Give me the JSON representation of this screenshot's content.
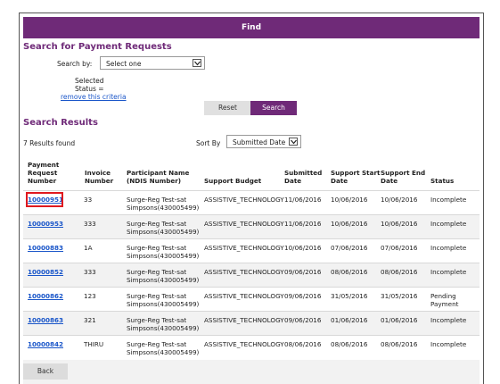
{
  "header": {
    "title": "Find"
  },
  "search_section": {
    "title": "Search for Payment Requests",
    "search_by_label": "Search by:",
    "search_by_value": "Select one",
    "selected_label": "Selected",
    "status_label": "Status =",
    "remove_link": "remove this criteria",
    "reset_label": "Reset",
    "search_label": "Search"
  },
  "results_section": {
    "title": "Search Results",
    "count_text": "7 Results found",
    "sort_by_label": "Sort By",
    "sort_by_value": "Submitted Date"
  },
  "table": {
    "headers": {
      "payment": [
        "Payment",
        "Request",
        "Number"
      ],
      "invoice": [
        "Invoice",
        "Number"
      ],
      "participant": [
        "Participant Name",
        "(NDIS Number)"
      ],
      "budget": "Support Budget",
      "submitted": [
        "Submitted",
        "Date"
      ],
      "start": [
        "Support Start",
        "Date"
      ],
      "end": [
        "Support End",
        "Date"
      ],
      "status": "Status"
    },
    "rows": [
      {
        "number": "10000951",
        "invoice": "33",
        "name1": "Surge-Reg Test-sat",
        "name2": "Simpsons(430005499)",
        "budget": "ASSISTIVE_TECHNOLOGY",
        "submitted": "11/06/2016",
        "start": "10/06/2016",
        "end": "10/06/2016",
        "status1": "Incomplete",
        "status2": ""
      },
      {
        "number": "10000953",
        "invoice": "333",
        "name1": "Surge-Reg Test-sat",
        "name2": "Simpsons(430005499)",
        "budget": "ASSISTIVE_TECHNOLOGY",
        "submitted": "11/06/2016",
        "start": "10/06/2016",
        "end": "10/06/2016",
        "status1": "Incomplete",
        "status2": ""
      },
      {
        "number": "10000883",
        "invoice": "1A",
        "name1": "Surge-Reg Test-sat",
        "name2": "Simpsons(430005499)",
        "budget": "ASSISTIVE_TECHNOLOGY",
        "submitted": "10/06/2016",
        "start": "07/06/2016",
        "end": "07/06/2016",
        "status1": "Incomplete",
        "status2": ""
      },
      {
        "number": "10000852",
        "invoice": "333",
        "name1": "Surge-Reg Test-sat",
        "name2": "Simpsons(430005499)",
        "budget": "ASSISTIVE_TECHNOLOGY",
        "submitted": "09/06/2016",
        "start": "08/06/2016",
        "end": "08/06/2016",
        "status1": "Incomplete",
        "status2": ""
      },
      {
        "number": "10000862",
        "invoice": "123",
        "name1": "Surge-Reg Test-sat",
        "name2": "Simpsons(430005499)",
        "budget": "ASSISTIVE_TECHNOLOGY",
        "submitted": "09/06/2016",
        "start": "31/05/2016",
        "end": "31/05/2016",
        "status1": "Pending",
        "status2": "Payment"
      },
      {
        "number": "10000863",
        "invoice": "321",
        "name1": "Surge-Reg Test-sat",
        "name2": "Simpsons(430005499)",
        "budget": "ASSISTIVE_TECHNOLOGY",
        "submitted": "09/06/2016",
        "start": "01/06/2016",
        "end": "01/06/2016",
        "status1": "Incomplete",
        "status2": ""
      },
      {
        "number": "10000842",
        "invoice": "THIRU",
        "name1": "Surge-Reg Test-sat",
        "name2": "Simpsons(430005499)",
        "budget": "ASSISTIVE_TECHNOLOGY",
        "submitted": "08/06/2016",
        "start": "08/06/2016",
        "end": "08/06/2016",
        "status1": "Incomplete",
        "status2": ""
      }
    ]
  },
  "footer": {
    "back_label": "Back"
  },
  "colors": {
    "brand": "#6f2a78",
    "link": "#1a56c9",
    "highlight": "#e0191f"
  }
}
